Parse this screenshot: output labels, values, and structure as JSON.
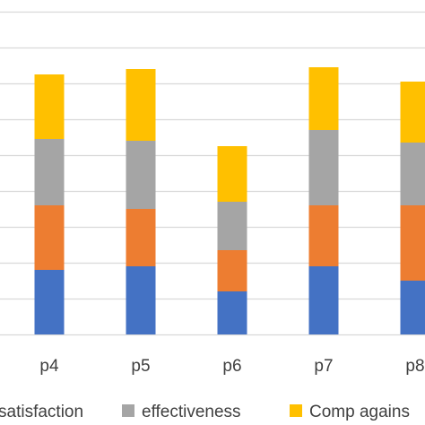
{
  "chart_data": {
    "type": "bar",
    "stacked": true,
    "categories": [
      "p4",
      "p5",
      "p6",
      "p7",
      "p8"
    ],
    "series": [
      {
        "name": "satisfaction",
        "color": "#4472c4",
        "values": [
          1.8,
          1.9,
          1.2,
          1.9,
          1.5
        ]
      },
      {
        "name": "",
        "color": "#ed7d31",
        "values": [
          1.8,
          1.6,
          1.15,
          1.7,
          2.1
        ]
      },
      {
        "name": "effectiveness",
        "color": "#a5a5a5",
        "values": [
          1.85,
          1.9,
          1.35,
          2.1,
          1.75
        ]
      },
      {
        "name": "Comp agains",
        "color": "#ffc000",
        "values": [
          1.8,
          2.0,
          1.55,
          1.75,
          1.7
        ]
      }
    ],
    "ylim": [
      0,
      9
    ],
    "grid": true,
    "legend": "bottom"
  }
}
